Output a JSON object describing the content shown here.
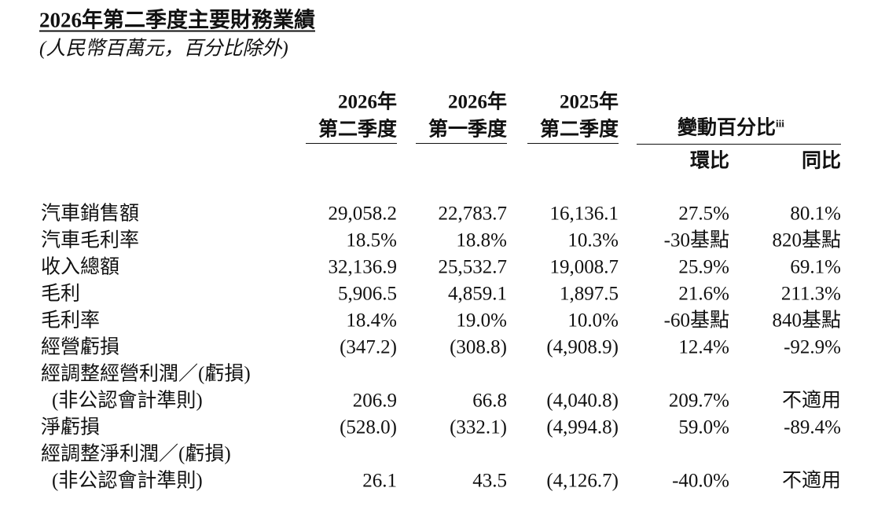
{
  "header": {
    "title": "2026年第二季度主要財務業績",
    "subtitle": "(人民幣百萬元，百分比除外)"
  },
  "table": {
    "columns": [
      [
        "2026年",
        "第二季度"
      ],
      [
        "2026年",
        "第一季度"
      ],
      [
        "2025年",
        "第二季度"
      ]
    ],
    "change_header": "變動百分比",
    "change_note": "iii",
    "change_columns": [
      "環比",
      "同比"
    ],
    "rows": [
      {
        "label": [
          "汽車銷售額"
        ],
        "values": [
          "29,058.2",
          "22,783.7",
          "16,136.1",
          "27.5%",
          "80.1%"
        ]
      },
      {
        "label": [
          "汽車毛利率"
        ],
        "values": [
          "18.5%",
          "18.8%",
          "10.3%",
          "-30基點",
          "820基點"
        ]
      },
      {
        "label": [
          "收入總額"
        ],
        "values": [
          "32,136.9",
          "25,532.7",
          "19,008.7",
          "25.9%",
          "69.1%"
        ]
      },
      {
        "label": [
          "毛利"
        ],
        "values": [
          "5,906.5",
          "4,859.1",
          "1,897.5",
          "21.6%",
          "211.3%"
        ]
      },
      {
        "label": [
          "毛利率"
        ],
        "values": [
          "18.4%",
          "19.0%",
          "10.0%",
          "-60基點",
          "840基點"
        ]
      },
      {
        "label": [
          "經營虧損"
        ],
        "values": [
          "(347.2)",
          "(308.8)",
          "(4,908.9)",
          "12.4%",
          "-92.9%"
        ]
      },
      {
        "label": [
          "經調整經營利潤／(虧損)",
          "(非公認會計準則)"
        ],
        "values": [
          "206.9",
          "66.8",
          "(4,040.8)",
          "209.7%",
          "不適用"
        ]
      },
      {
        "label": [
          "淨虧損"
        ],
        "values": [
          "(528.0)",
          "(332.1)",
          "(4,994.8)",
          "59.0%",
          "-89.4%"
        ]
      },
      {
        "label": [
          "經調整淨利潤／(虧損)",
          "(非公認會計準則)"
        ],
        "values": [
          "26.1",
          "43.5",
          "(4,126.7)",
          "-40.0%",
          "不適用"
        ]
      }
    ]
  }
}
